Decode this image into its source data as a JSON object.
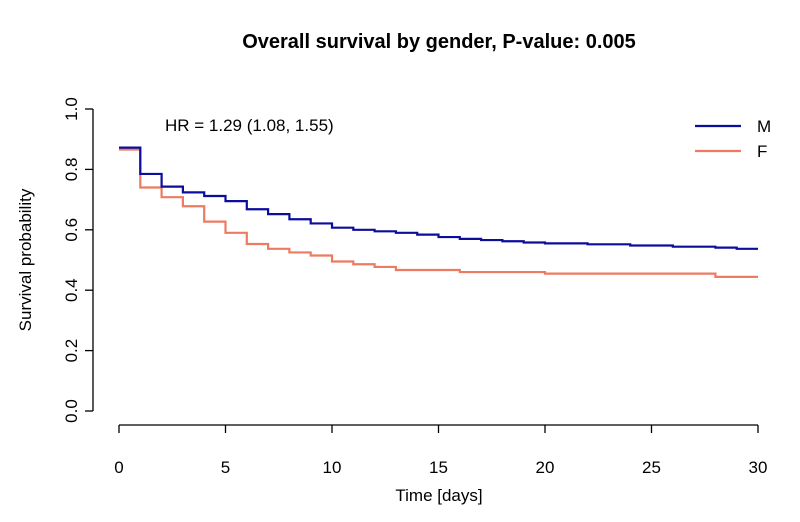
{
  "chart_data": {
    "type": "line",
    "title": "Overall survival by gender, P-value: 0.005",
    "xlabel": "Time [days]",
    "ylabel": "Survival probability",
    "xlim": [
      0,
      30
    ],
    "ylim": [
      0,
      1
    ],
    "x_ticks": [
      0,
      5,
      10,
      15,
      20,
      25,
      30
    ],
    "x_tick_labels": [
      "0",
      "5",
      "10",
      "15",
      "20",
      "25",
      "30"
    ],
    "y_ticks": [
      0,
      0.2,
      0.4,
      0.6,
      0.8,
      1.0
    ],
    "y_tick_labels": [
      "0.0",
      "0.2",
      "0.4",
      "0.6",
      "0.8",
      "1.0"
    ],
    "grid": false,
    "legend_position": "top-right",
    "annotation": "HR = 1.29 (1.08, 1.55)",
    "step": true,
    "series": [
      {
        "name": "M",
        "color": "#0d0d9c",
        "points": [
          [
            0,
            0.872
          ],
          [
            1,
            0.785
          ],
          [
            2,
            0.743
          ],
          [
            3,
            0.724
          ],
          [
            4,
            0.712
          ],
          [
            5,
            0.695
          ],
          [
            6,
            0.668
          ],
          [
            7,
            0.652
          ],
          [
            8,
            0.635
          ],
          [
            9,
            0.621
          ],
          [
            10,
            0.607
          ],
          [
            11,
            0.6
          ],
          [
            12,
            0.595
          ],
          [
            13,
            0.59
          ],
          [
            14,
            0.584
          ],
          [
            15,
            0.576
          ],
          [
            16,
            0.57
          ],
          [
            17,
            0.566
          ],
          [
            18,
            0.562
          ],
          [
            19,
            0.558
          ],
          [
            20,
            0.555
          ],
          [
            22,
            0.552
          ],
          [
            24,
            0.548
          ],
          [
            26,
            0.544
          ],
          [
            28,
            0.541
          ],
          [
            29,
            0.537
          ],
          [
            30,
            0.537
          ]
        ]
      },
      {
        "name": "F",
        "color": "#ec7b62",
        "points": [
          [
            0,
            0.866
          ],
          [
            1,
            0.74
          ],
          [
            2,
            0.708
          ],
          [
            3,
            0.678
          ],
          [
            4,
            0.627
          ],
          [
            5,
            0.59
          ],
          [
            6,
            0.553
          ],
          [
            7,
            0.537
          ],
          [
            8,
            0.525
          ],
          [
            9,
            0.515
          ],
          [
            10,
            0.495
          ],
          [
            11,
            0.486
          ],
          [
            12,
            0.477
          ],
          [
            13,
            0.467
          ],
          [
            16,
            0.46
          ],
          [
            20,
            0.455
          ],
          [
            28,
            0.444
          ],
          [
            30,
            0.444
          ]
        ]
      }
    ]
  }
}
